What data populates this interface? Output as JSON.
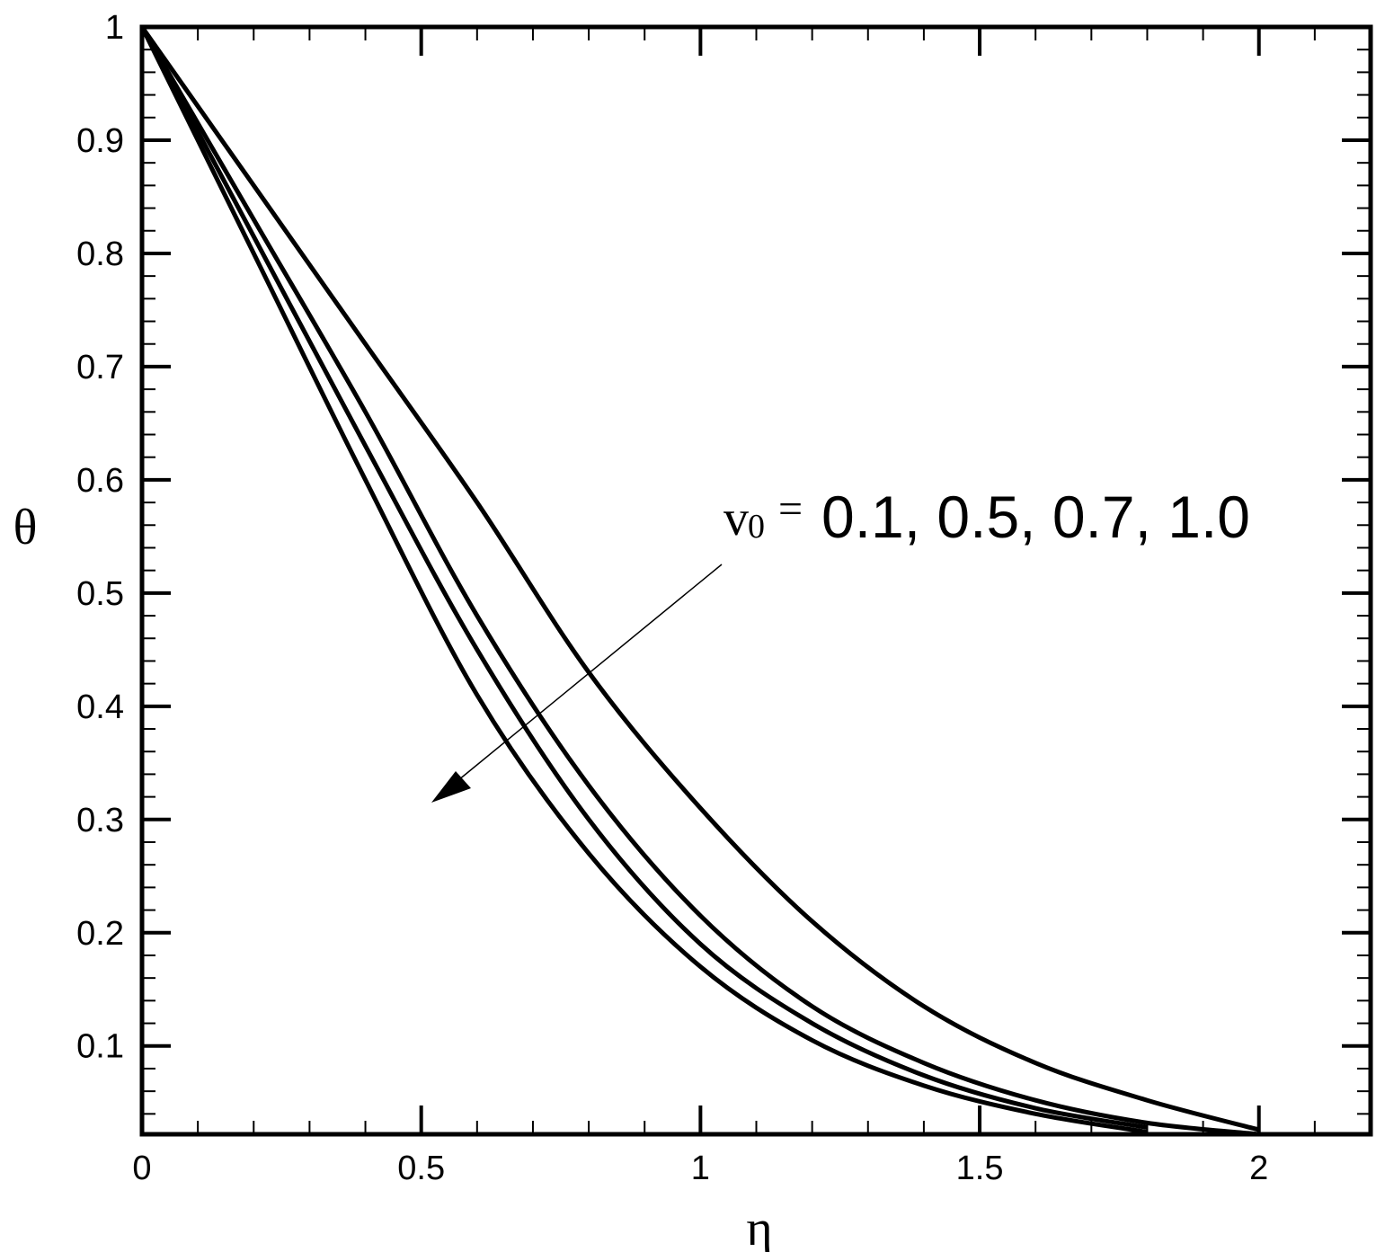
{
  "chart_data": {
    "type": "line",
    "xlabel": "η",
    "ylabel": "θ",
    "annotation": {
      "symbol": "v",
      "subscript": "0",
      "equals": "=",
      "text": "0.1, 0.5, 0.7, 1.0"
    },
    "x": [
      0,
      0.2,
      0.4,
      0.6,
      0.8,
      1.0,
      1.2,
      1.4,
      1.6,
      1.8,
      2.0
    ],
    "series": [
      {
        "color": "#000000",
        "values": [
          1,
          0.86,
          0.72,
          0.58,
          0.43,
          0.31,
          0.21,
          0.135,
          0.085,
          0.052,
          0.026
        ]
      },
      {
        "color": "#000000",
        "values": [
          1,
          0.83,
          0.66,
          0.48,
          0.33,
          0.215,
          0.135,
          0.085,
          0.052,
          0.032,
          0.022
        ]
      },
      {
        "color": "#000000",
        "values": [
          1,
          0.815,
          0.63,
          0.45,
          0.3,
          0.19,
          0.12,
          0.074,
          0.045,
          0.028,
          null
        ]
      },
      {
        "color": "#000000",
        "values": [
          1,
          0.8,
          0.6,
          0.41,
          0.27,
          0.17,
          0.105,
          0.065,
          0.04,
          0.024,
          null
        ]
      }
    ],
    "xlim": [
      0,
      2.2
    ],
    "ylim": [
      0.022,
      1
    ],
    "xticks": [
      0,
      0.5,
      1,
      1.5,
      2
    ],
    "yticks": [
      0.1,
      0.2,
      0.3,
      0.4,
      0.5,
      0.6,
      0.7,
      0.8,
      0.9,
      1
    ],
    "xminorticks": [
      0.1,
      0.2,
      0.3,
      0.4,
      0.6,
      0.7,
      0.8,
      0.9,
      1.1,
      1.2,
      1.3,
      1.4,
      1.6,
      1.7,
      1.8,
      1.9,
      2.1
    ],
    "yminorticks": [
      0.04,
      0.06,
      0.08,
      0.12,
      0.14,
      0.16,
      0.18,
      0.22,
      0.24,
      0.26,
      0.28,
      0.32,
      0.34,
      0.36,
      0.38,
      0.42,
      0.44,
      0.46,
      0.48,
      0.52,
      0.54,
      0.56,
      0.58,
      0.62,
      0.64,
      0.66,
      0.68,
      0.72,
      0.74,
      0.76,
      0.78,
      0.82,
      0.84,
      0.86,
      0.88,
      0.92,
      0.94,
      0.96,
      0.98
    ],
    "grid": false
  }
}
